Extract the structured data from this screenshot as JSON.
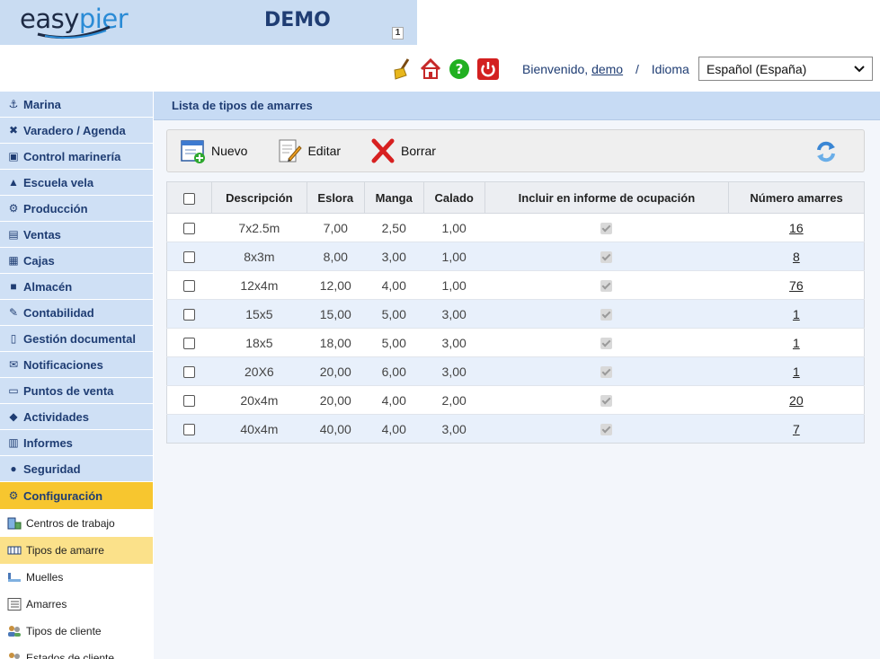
{
  "header": {
    "logo_easy": "easy",
    "logo_pier": "pier",
    "company": "DEMO",
    "company_badge": "1",
    "welcome_prefix": "Bienvenido,",
    "username": "demo",
    "separator": "/",
    "language_label": "Idioma",
    "language_value": "Español (España)",
    "icons": [
      "broom-icon",
      "home-icon",
      "help-icon",
      "power-icon"
    ]
  },
  "sidebar": {
    "items": [
      {
        "label": "Marina",
        "icon": "ship-icon"
      },
      {
        "label": "Varadero / Agenda",
        "icon": "tools-icon"
      },
      {
        "label": "Control marinería",
        "icon": "clipboard-icon"
      },
      {
        "label": "Escuela vela",
        "icon": "graduation-cap-icon"
      },
      {
        "label": "Producción",
        "icon": "production-icon"
      },
      {
        "label": "Ventas",
        "icon": "invoice-icon"
      },
      {
        "label": "Cajas",
        "icon": "cash-register-icon"
      },
      {
        "label": "Almacén",
        "icon": "boxes-icon"
      },
      {
        "label": "Contabilidad",
        "icon": "pen-icon"
      },
      {
        "label": "Gestión documental",
        "icon": "document-icon"
      },
      {
        "label": "Notificaciones",
        "icon": "envelope-icon"
      },
      {
        "label": "Puntos de venta",
        "icon": "monitor-icon"
      },
      {
        "label": "Actividades",
        "icon": "fish-icon"
      },
      {
        "label": "Informes",
        "icon": "report-icon"
      },
      {
        "label": "Seguridad",
        "icon": "user-lock-icon"
      }
    ],
    "active_section": {
      "label": "Configuración",
      "icon": "gear-icon"
    },
    "sub_items": [
      {
        "label": "Centros de trabajo",
        "icon": "building-icon",
        "active": false
      },
      {
        "label": "Tipos de amarre",
        "icon": "mooring-type-icon",
        "active": true
      },
      {
        "label": "Muelles",
        "icon": "dock-icon",
        "active": false
      },
      {
        "label": "Amarres",
        "icon": "list-icon",
        "active": false
      },
      {
        "label": "Tipos de cliente",
        "icon": "users-icon",
        "active": false
      },
      {
        "label": "Estados de cliente",
        "icon": "users-icon",
        "active": false
      }
    ]
  },
  "main": {
    "title": "Lista de tipos de amarres",
    "actions": {
      "new": "Nuevo",
      "edit": "Editar",
      "delete": "Borrar"
    },
    "columns": [
      "Descripción",
      "Eslora",
      "Manga",
      "Calado",
      "Incluir en informe de ocupación",
      "Número amarres"
    ],
    "rows": [
      {
        "desc": "7x2.5m",
        "eslora": "7,00",
        "manga": "2,50",
        "calado": "1,00",
        "include": true,
        "count": "16"
      },
      {
        "desc": "8x3m",
        "eslora": "8,00",
        "manga": "3,00",
        "calado": "1,00",
        "include": true,
        "count": "8"
      },
      {
        "desc": "12x4m",
        "eslora": "12,00",
        "manga": "4,00",
        "calado": "1,00",
        "include": true,
        "count": "76"
      },
      {
        "desc": "15x5",
        "eslora": "15,00",
        "manga": "5,00",
        "calado": "3,00",
        "include": true,
        "count": "1"
      },
      {
        "desc": "18x5",
        "eslora": "18,00",
        "manga": "5,00",
        "calado": "3,00",
        "include": true,
        "count": "1"
      },
      {
        "desc": "20X6",
        "eslora": "20,00",
        "manga": "6,00",
        "calado": "3,00",
        "include": true,
        "count": "1"
      },
      {
        "desc": "20x4m",
        "eslora": "20,00",
        "manga": "4,00",
        "calado": "2,00",
        "include": true,
        "count": "20"
      },
      {
        "desc": "40x4m",
        "eslora": "40,00",
        "manga": "4,00",
        "calado": "3,00",
        "include": true,
        "count": "7"
      }
    ]
  },
  "colors": {
    "accent": "#1f3d73",
    "menu_bg": "#cfe0f5",
    "active_menu": "#f7c62f",
    "active_sub": "#fbe18a"
  }
}
